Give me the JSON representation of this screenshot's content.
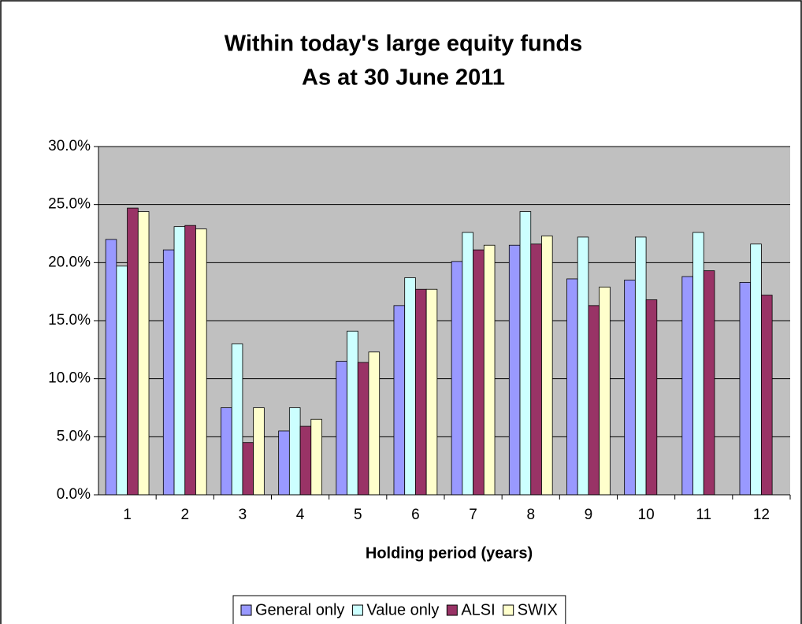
{
  "chart_data": {
    "type": "bar",
    "title": "Within today's large equity funds",
    "subtitle": "As at 30 June 2011",
    "x_label": "Holding period (years)",
    "categories": [
      "1",
      "2",
      "3",
      "4",
      "5",
      "6",
      "7",
      "8",
      "9",
      "10",
      "11",
      "12"
    ],
    "series": [
      {
        "name": "General only",
        "color": "#9999ff",
        "values": [
          22.0,
          21.1,
          7.5,
          5.5,
          11.5,
          16.3,
          20.1,
          21.5,
          18.6,
          18.5,
          18.8,
          18.3
        ]
      },
      {
        "name": "Value only",
        "color": "#ccffff",
        "values": [
          19.7,
          23.1,
          13.0,
          7.5,
          14.1,
          18.7,
          22.6,
          24.4,
          22.2,
          22.2,
          22.6,
          21.6
        ]
      },
      {
        "name": "ALSI",
        "color": "#993366",
        "values": [
          24.7,
          23.2,
          4.5,
          5.9,
          11.4,
          17.7,
          21.1,
          21.6,
          16.3,
          16.8,
          19.3,
          17.2
        ]
      },
      {
        "name": "SWIX",
        "color": "#ffffcc",
        "values": [
          24.4,
          22.9,
          7.5,
          6.5,
          12.3,
          17.7,
          21.5,
          22.3,
          17.9,
          null,
          null,
          null
        ]
      }
    ],
    "ylim": [
      0,
      30
    ],
    "yticks": [
      {
        "value": 0,
        "label": "0.0%"
      },
      {
        "value": 5,
        "label": "5.0%"
      },
      {
        "value": 10,
        "label": "10.0%"
      },
      {
        "value": 15,
        "label": "15.0%"
      },
      {
        "value": 20,
        "label": "20.0%"
      },
      {
        "value": 25,
        "label": "25.0%"
      },
      {
        "value": 30,
        "label": "30.0%"
      }
    ],
    "grid": true,
    "plot_background": "#c0c0c0",
    "legend": "bottom"
  }
}
